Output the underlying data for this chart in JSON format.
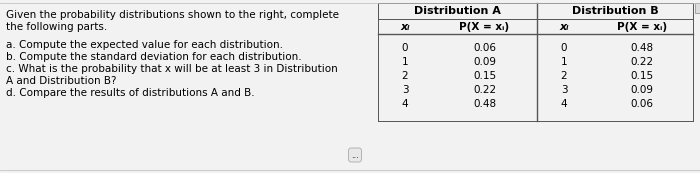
{
  "left_text_line1": "Given the probability distributions shown to the right, complete",
  "left_text_line2": "the following parts.",
  "bullet_lines": [
    "a. Compute the expected value for each distribution.",
    "b. Compute the standard deviation for each distribution.",
    "c. What is the probability that x will be at least 3 in Distribution",
    "A and Distribution B?",
    "d. Compare the results of distributions A and B."
  ],
  "dist_a_header": "Distribution A",
  "dist_b_header": "Distribution B",
  "xi": [
    0,
    1,
    2,
    3,
    4
  ],
  "dist_a_p": [
    0.06,
    0.09,
    0.15,
    0.22,
    0.48
  ],
  "dist_b_p": [
    0.48,
    0.22,
    0.15,
    0.09,
    0.06
  ],
  "bg_color": "#f2f2f2",
  "text_color": "#000000",
  "table_line_color": "#555555",
  "font_size": 7.5,
  "small_text": "..."
}
